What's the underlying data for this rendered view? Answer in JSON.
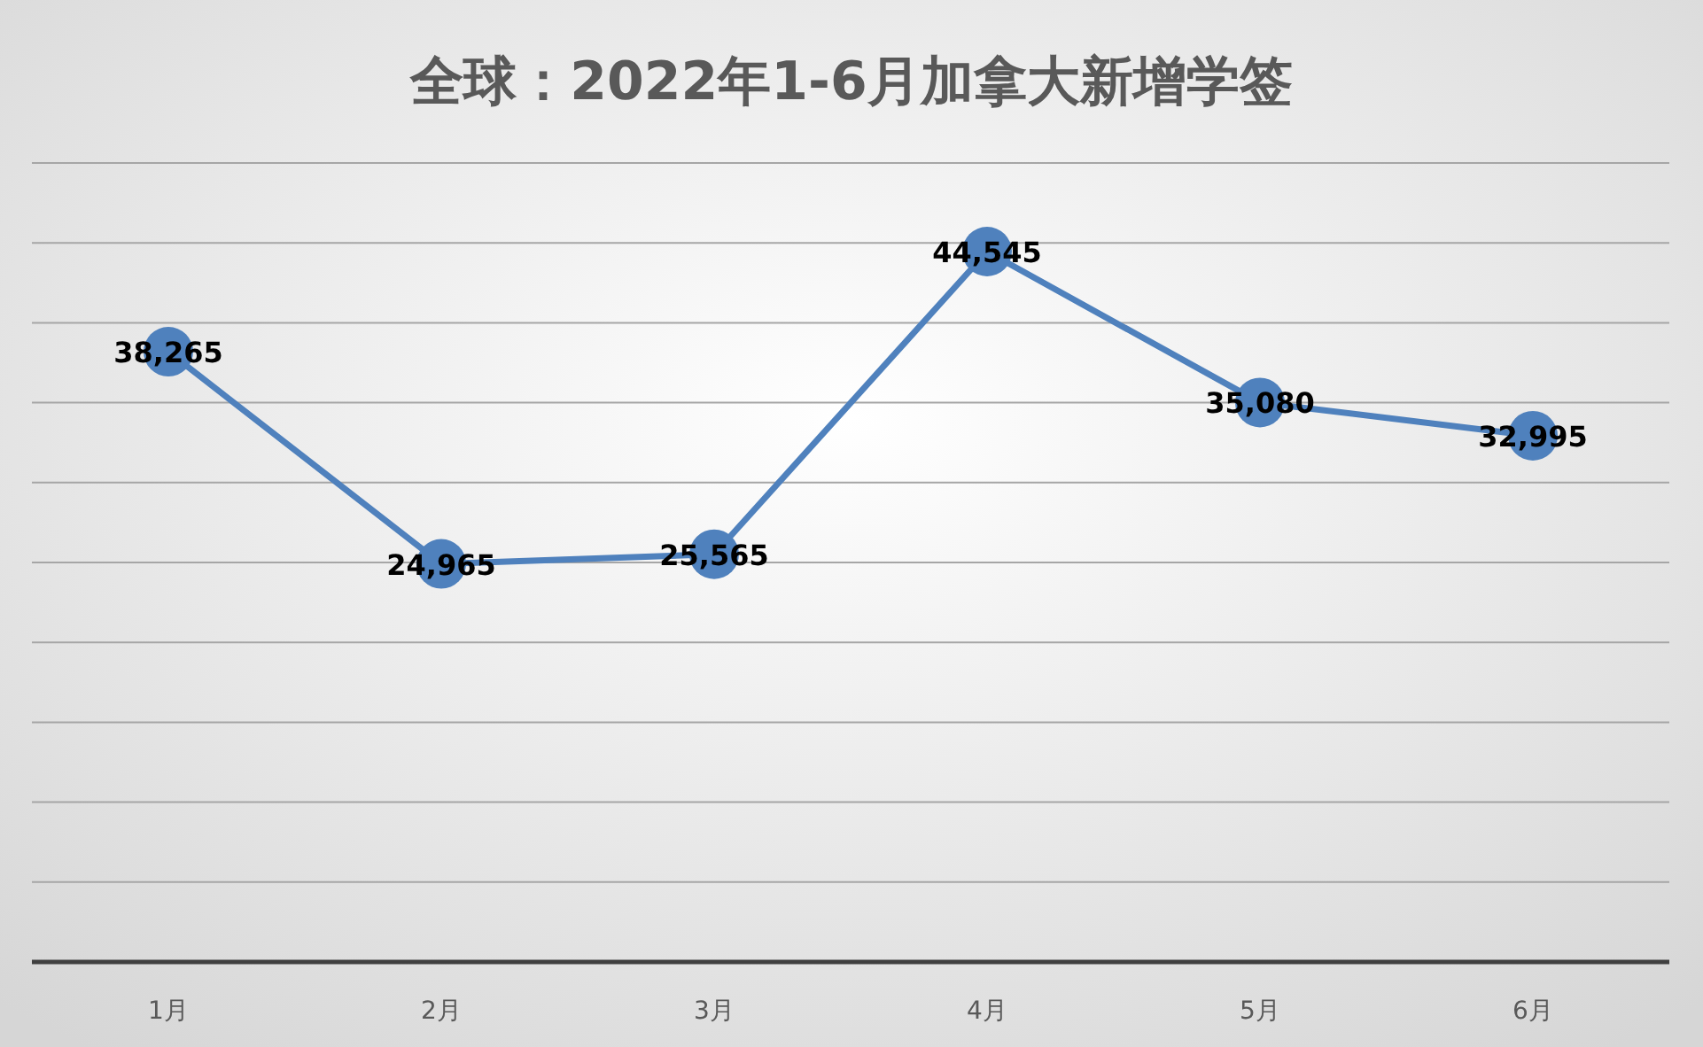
{
  "chart_data": {
    "type": "line",
    "title": "全球：2022年1-6月加拿大新增学签",
    "categories": [
      "1月",
      "2月",
      "3月",
      "4月",
      "5月",
      "6月"
    ],
    "series": [
      {
        "color": "#4f81bd",
        "values": [
          38265,
          24965,
          25565,
          44545,
          35080,
          32995
        ],
        "value_labels": [
          "38,265",
          "24,965",
          "25,565",
          "44,545",
          "35,080",
          "32,995"
        ]
      }
    ],
    "grid": "y",
    "tick_labels": "x",
    "marker": "circle",
    "line_style": "solid"
  }
}
